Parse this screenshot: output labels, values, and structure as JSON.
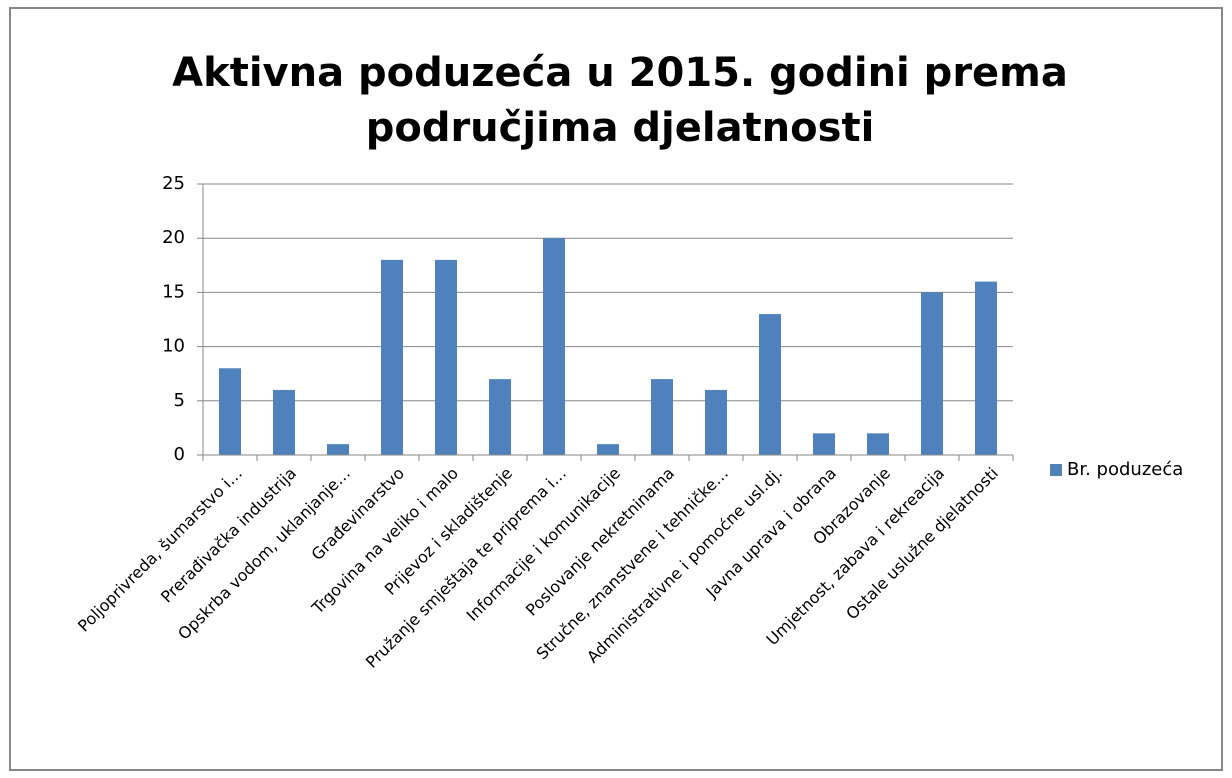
{
  "chart_data": {
    "type": "bar",
    "title": [
      "Aktivna poduzeća u 2015. godini prema",
      "područjima djelatnosti"
    ],
    "categories": [
      "Poljoprivreda, šumarstvo i…",
      "Prerađivačka industrija",
      "Opskrba vodom, uklanjanje…",
      "Građevinarstvo",
      "Trgovina na veliko i malo",
      "Prijevoz i skladištenje",
      "Pružanje smještaja te priprema i…",
      "Informacije i komunikacije",
      "Poslovanje nekretninama",
      "Stručne, znanstvene i tehničke…",
      "Administrativne i pomoćne usl.dj.",
      "Javna uprava i obrana",
      "Obrazovanje",
      "Umjetnost, zabava i rekreacija",
      "Ostale uslužne djelatnosti"
    ],
    "series": [
      {
        "name": "Br. poduzeća",
        "color": "#4f81bd",
        "values": [
          8,
          6,
          1,
          18,
          18,
          7,
          20,
          1,
          7,
          6,
          13,
          2,
          2,
          15,
          16
        ]
      }
    ],
    "ylim": [
      0,
      25
    ],
    "yticks": [
      0,
      5,
      10,
      15,
      20,
      25
    ],
    "grid": true,
    "legend": "right"
  }
}
